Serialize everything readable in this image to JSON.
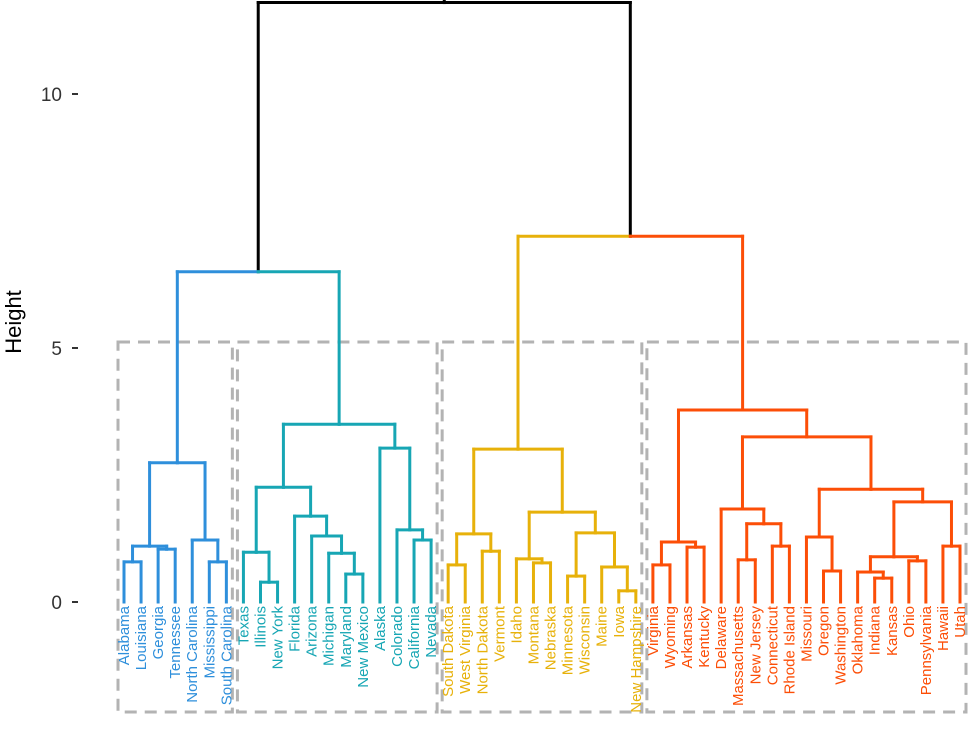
{
  "chart_data": {
    "type": "dendrogram",
    "title": "",
    "ylabel": "Height",
    "xlabel": "",
    "ylim": [
      0,
      11.8
    ],
    "yticks": [
      0,
      5,
      10
    ],
    "ytick_labels": [
      "0",
      "5",
      "10"
    ],
    "cluster_box_color": "#b3b3b3",
    "k": 4,
    "tree": {
      "h": 11.8,
      "c": [
        {
          "h": 6.5,
          "c": [
            {
              "h": 2.74,
              "color": "#2E8FDB",
              "c": [
                {
                  "h": 1.1,
                  "c": [
                    {
                      "h": 0.79,
                      "c": [
                        "Alabama",
                        "Louisiana"
                      ]
                    },
                    {
                      "h": 1.04,
                      "c": [
                        "Georgia",
                        "Tennessee"
                      ]
                    }
                  ]
                },
                {
                  "h": 1.22,
                  "c": [
                    "North Carolina",
                    {
                      "h": 0.79,
                      "c": [
                        "Mississippi",
                        "South Carolina"
                      ]
                    }
                  ]
                }
              ]
            },
            {
              "h": 3.5,
              "color": "#17A6B4",
              "c": [
                {
                  "h": 2.26,
                  "c": [
                    {
                      "h": 0.98,
                      "c": [
                        "Texas",
                        {
                          "h": 0.39,
                          "c": [
                            "Illinois",
                            "New York"
                          ]
                        }
                      ]
                    },
                    {
                      "h": 1.69,
                      "c": [
                        "Florida",
                        {
                          "h": 1.3,
                          "c": [
                            "Arizona",
                            {
                              "h": 0.96,
                              "c": [
                                "Michigan",
                                {
                                  "h": 0.55,
                                  "c": [
                                    "Maryland",
                                    "New Mexico"
                                  ]
                                }
                              ]
                            }
                          ]
                        }
                      ]
                    }
                  ]
                },
                {
                  "h": 3.03,
                  "c": [
                    "Alaska",
                    {
                      "h": 1.42,
                      "c": [
                        "Colorado",
                        {
                          "h": 1.22,
                          "c": [
                            "California",
                            "Nevada"
                          ]
                        }
                      ]
                    }
                  ]
                }
              ]
            }
          ]
        },
        {
          "h": 7.2,
          "c": [
            {
              "h": 3.01,
              "color": "#E7B10A",
              "c": [
                {
                  "h": 1.34,
                  "c": [
                    {
                      "h": 0.73,
                      "c": [
                        "South Dakota",
                        "West Virginia"
                      ]
                    },
                    {
                      "h": 1.0,
                      "c": [
                        "North Dakota",
                        "Vermont"
                      ]
                    }
                  ]
                },
                {
                  "h": 1.77,
                  "c": [
                    {
                      "h": 0.85,
                      "c": [
                        "Idaho",
                        {
                          "h": 0.77,
                          "c": [
                            "Montana",
                            "Nebraska"
                          ]
                        }
                      ]
                    },
                    {
                      "h": 1.36,
                      "c": [
                        {
                          "h": 0.51,
                          "c": [
                            "Minnesota",
                            "Wisconsin"
                          ]
                        },
                        {
                          "h": 0.69,
                          "c": [
                            "Maine",
                            {
                              "h": 0.22,
                              "c": [
                                "Iowa",
                                "New Hampshire"
                              ]
                            }
                          ]
                        }
                      ]
                    }
                  ]
                }
              ]
            },
            {
              "h": 3.78,
              "color": "#FC4E07",
              "c": [
                {
                  "h": 1.18,
                  "c": [
                    {
                      "h": 0.73,
                      "c": [
                        "Virginia",
                        "Wyoming"
                      ]
                    },
                    {
                      "h": 1.08,
                      "c": [
                        "Arkansas",
                        "Kentucky"
                      ]
                    }
                  ]
                },
                {
                  "h": 3.25,
                  "c": [
                    {
                      "h": 1.83,
                      "c": [
                        "Delaware",
                        {
                          "h": 1.54,
                          "c": [
                            {
                              "h": 0.83,
                              "c": [
                                "Massachusetts",
                                "New Jersey"
                              ]
                            },
                            {
                              "h": 1.1,
                              "c": [
                                "Connecticut",
                                "Rhode Island"
                              ]
                            }
                          ]
                        }
                      ]
                    },
                    {
                      "h": 2.22,
                      "c": [
                        {
                          "h": 1.28,
                          "c": [
                            "Missouri",
                            {
                              "h": 0.61,
                              "c": [
                                "Oregon",
                                "Washington"
                              ]
                            }
                          ]
                        },
                        {
                          "h": 1.97,
                          "c": [
                            {
                              "h": 0.89,
                              "c": [
                                {
                                  "h": 0.59,
                                  "c": [
                                    "Oklahoma",
                                    {
                                      "h": 0.47,
                                      "c": [
                                        "Indiana",
                                        "Kansas"
                                      ]
                                    }
                                  ]
                                },
                                {
                                  "h": 0.81,
                                  "c": [
                                    "Ohio",
                                    "Pennsylvania"
                                  ]
                                }
                              ]
                            },
                            {
                              "h": 1.1,
                              "c": [
                                "Hawaii",
                                "Utah"
                              ]
                            }
                          ]
                        }
                      ]
                    }
                  ]
                }
              ]
            }
          ]
        }
      ]
    }
  }
}
